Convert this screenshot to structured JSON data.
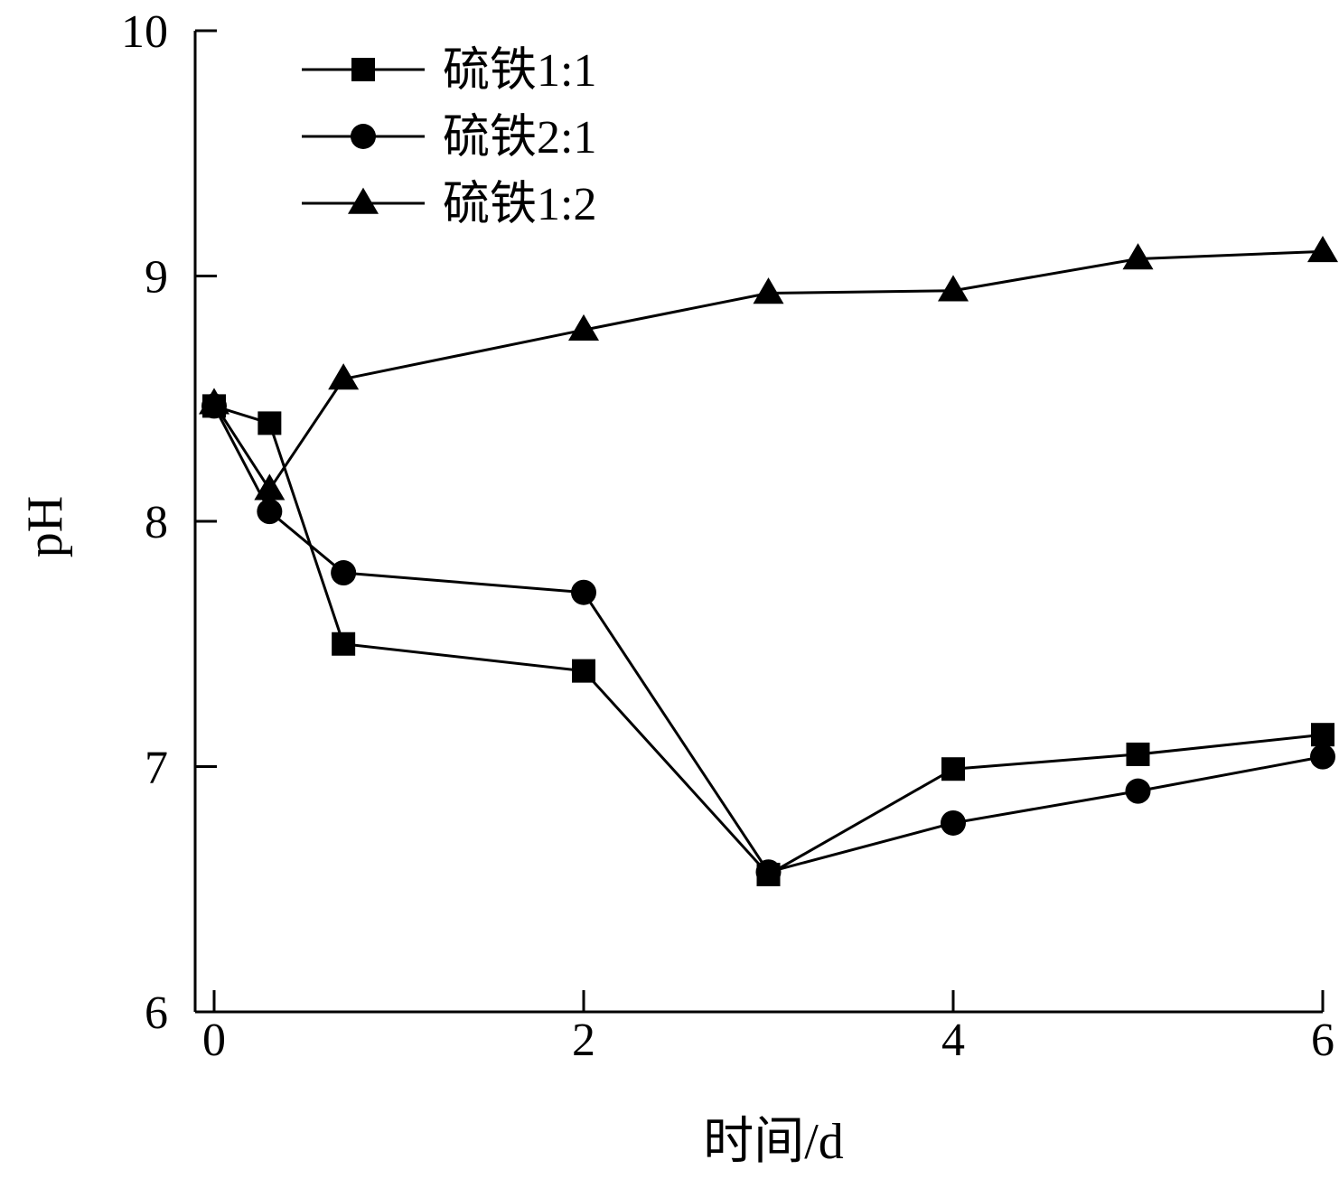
{
  "chart_data": {
    "type": "line",
    "xlabel": "时间/d",
    "ylabel": "pH",
    "xlim": [
      0,
      6
    ],
    "ylim": [
      6,
      10
    ],
    "xticks": [
      0,
      2,
      4,
      6
    ],
    "yticks": [
      6,
      7,
      8,
      9,
      10
    ],
    "xtick_labels": [
      "0",
      "2",
      "4",
      "6"
    ],
    "ytick_labels": [
      "6",
      "7",
      "8",
      "9",
      "10"
    ],
    "grid": false,
    "legend_position": "top-left",
    "series": [
      {
        "name": "硫铁1:1",
        "marker": "square",
        "color": "#000000",
        "x": [
          0,
          0.3,
          0.7,
          2,
          3,
          4,
          5,
          6
        ],
        "y": [
          8.47,
          8.4,
          7.5,
          7.39,
          6.56,
          6.99,
          7.05,
          7.13
        ]
      },
      {
        "name": "硫铁2:1",
        "marker": "circle",
        "color": "#000000",
        "x": [
          0,
          0.3,
          0.7,
          2,
          3,
          4,
          5,
          6
        ],
        "y": [
          8.47,
          8.04,
          7.79,
          7.71,
          6.57,
          6.77,
          6.9,
          7.04
        ]
      },
      {
        "name": "硫铁1:2",
        "marker": "triangle",
        "color": "#000000",
        "x": [
          0,
          0.3,
          0.7,
          2,
          3,
          4,
          5,
          6
        ],
        "y": [
          8.48,
          8.13,
          8.58,
          8.78,
          8.93,
          8.94,
          9.07,
          9.1
        ]
      }
    ]
  }
}
